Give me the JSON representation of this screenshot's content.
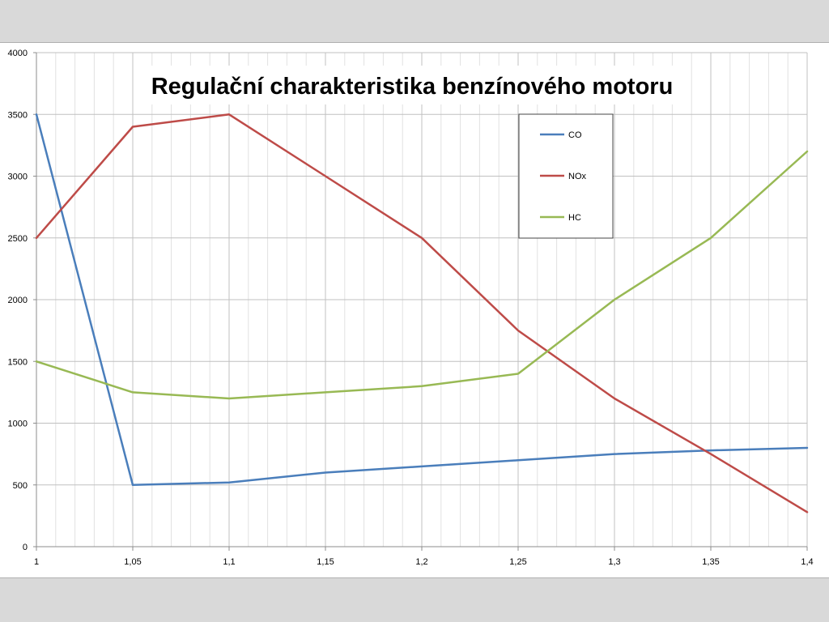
{
  "chart_data": {
    "type": "line",
    "title": "Regulační charakteristika benzínového motoru",
    "xlabel": "",
    "ylabel": "",
    "x": [
      1,
      1.05,
      1.1,
      1.15,
      1.2,
      1.25,
      1.3,
      1.35,
      1.4
    ],
    "x_tick_labels": [
      "1",
      "1,05",
      "1,1",
      "1,15",
      "1,2",
      "1,25",
      "1,3",
      "1,35",
      "1,4"
    ],
    "xlim": [
      1,
      1.4
    ],
    "ylim": [
      0,
      4000
    ],
    "y_ticks": [
      0,
      500,
      1000,
      1500,
      2000,
      2500,
      3000,
      3500,
      4000
    ],
    "y_tick_labels": [
      "0",
      "500",
      "1000",
      "1500",
      "2000",
      "2500",
      "3000",
      "3500",
      "4000"
    ],
    "grid": true,
    "legend_position": "top-right",
    "series": [
      {
        "name": "CO",
        "color": "#4a7ebb",
        "values": [
          3500,
          500,
          520,
          600,
          650,
          700,
          750,
          780,
          800
        ]
      },
      {
        "name": "NOx",
        "color": "#be4b48",
        "values": [
          2500,
          3400,
          3500,
          3000,
          2500,
          1750,
          1200,
          750,
          280
        ]
      },
      {
        "name": "HC",
        "color": "#98b954",
        "values": [
          1500,
          1250,
          1200,
          1250,
          1300,
          1400,
          2000,
          2500,
          3200
        ]
      }
    ]
  }
}
